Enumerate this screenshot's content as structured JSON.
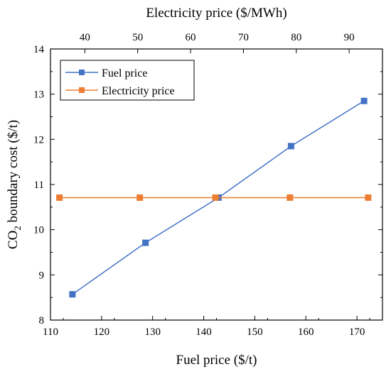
{
  "chart_data": {
    "type": "line",
    "title": "",
    "xlabel": "Fuel price ($/t)",
    "x2label": "Electricity price ($/MWh)",
    "ylabel": {
      "prefix": "CO",
      "subscript": "2",
      "suffix": " boundary cost ($/t)"
    },
    "xlim": [
      110,
      175
    ],
    "ylim": [
      8,
      14
    ],
    "x2lim": [
      33.5,
      96.3
    ],
    "xticks": [
      110,
      120,
      130,
      140,
      150,
      160,
      170
    ],
    "yticks": [
      8,
      9,
      10,
      11,
      12,
      13,
      14
    ],
    "x2ticks": [
      40,
      50,
      60,
      70,
      80,
      90
    ],
    "grid": false,
    "legend_position": "top-left",
    "series": [
      {
        "name": "Fuel price",
        "color": "#4472C4",
        "marker": "square",
        "axis": "bottom",
        "x": [
          114.3,
          128.6,
          142.9,
          157.1,
          171.4
        ],
        "y": [
          8.57,
          9.71,
          10.71,
          11.85,
          12.85
        ]
      },
      {
        "name": "Electricity price",
        "color": "#ED7D31",
        "marker": "square",
        "axis": "top",
        "x": [
          35.2,
          50.4,
          64.7,
          78.8,
          93.6
        ],
        "y": [
          10.71,
          10.71,
          10.71,
          10.71,
          10.71
        ]
      }
    ]
  }
}
